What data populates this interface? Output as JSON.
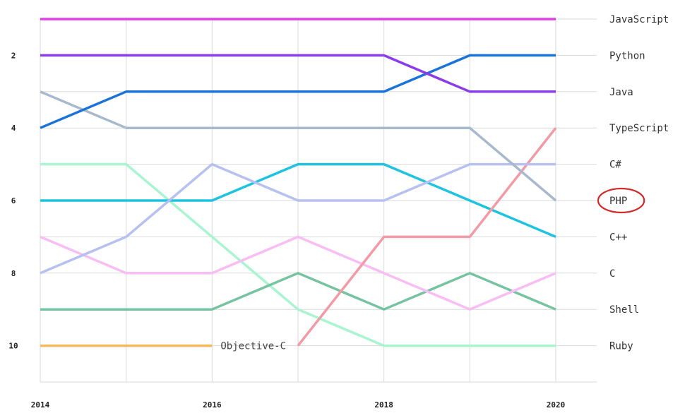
{
  "chart_data": {
    "type": "line",
    "title": "",
    "xlabel": "",
    "ylabel": "",
    "x": [
      2014,
      2015,
      2016,
      2017,
      2018,
      2019,
      2020
    ],
    "xticks": [
      "2014",
      "2016",
      "2018",
      "2020"
    ],
    "yticks": [
      "2",
      "4",
      "6",
      "8",
      "10"
    ],
    "ylim": [
      1,
      11
    ],
    "y_inverted": true,
    "grid": true,
    "legend_position": "right",
    "series": [
      {
        "name": "JavaScript",
        "color": "#e040e8",
        "values": [
          1,
          1,
          1,
          1,
          1,
          1,
          1
        ]
      },
      {
        "name": "Python",
        "color": "#8a3ee8",
        "values": [
          2,
          2,
          2,
          2,
          2,
          3,
          3
        ]
      },
      {
        "name": "Java",
        "color": "#1a73d9",
        "values": [
          4,
          3,
          3,
          3,
          3,
          2,
          2
        ]
      },
      {
        "name": "TypeScript",
        "color": "#a7b9cc",
        "values": [
          3,
          4,
          4,
          4,
          4,
          4,
          6
        ]
      },
      {
        "name": "C#",
        "color": "#b7c1f0",
        "values": [
          8,
          7,
          5,
          6,
          6,
          5,
          5
        ]
      },
      {
        "name": "PHP",
        "color": "#f29aa6",
        "values": [
          null,
          null,
          null,
          10,
          7,
          7,
          4
        ]
      },
      {
        "name": "C++",
        "color": "#1ec3e0",
        "values": [
          6,
          6,
          6,
          5,
          5,
          6,
          7
        ]
      },
      {
        "name": "C",
        "color": "#f8bdf4",
        "values": [
          7,
          8,
          8,
          7,
          8,
          9,
          8
        ]
      },
      {
        "name": "Shell",
        "color": "#76c3a0",
        "values": [
          9,
          9,
          9,
          8,
          9,
          8,
          9
        ]
      },
      {
        "name": "Ruby",
        "color": "#a9f5cf",
        "values": [
          5,
          5,
          7,
          9,
          10,
          10,
          10
        ]
      },
      {
        "name": "Objective-C",
        "color": "#f5b85c",
        "values": [
          10,
          10,
          10,
          null,
          null,
          null,
          null
        ]
      }
    ],
    "right_labels": [
      "JavaScript",
      "Python",
      "Java",
      "TypeScript",
      "C#",
      "PHP",
      "C++",
      "C",
      "Shell",
      "Ruby"
    ],
    "annotations": [
      {
        "text": "Objective-C",
        "series": "Objective-C"
      }
    ],
    "highlight": {
      "label": "PHP",
      "shape": "ellipse",
      "color": "#d42a2a"
    }
  }
}
